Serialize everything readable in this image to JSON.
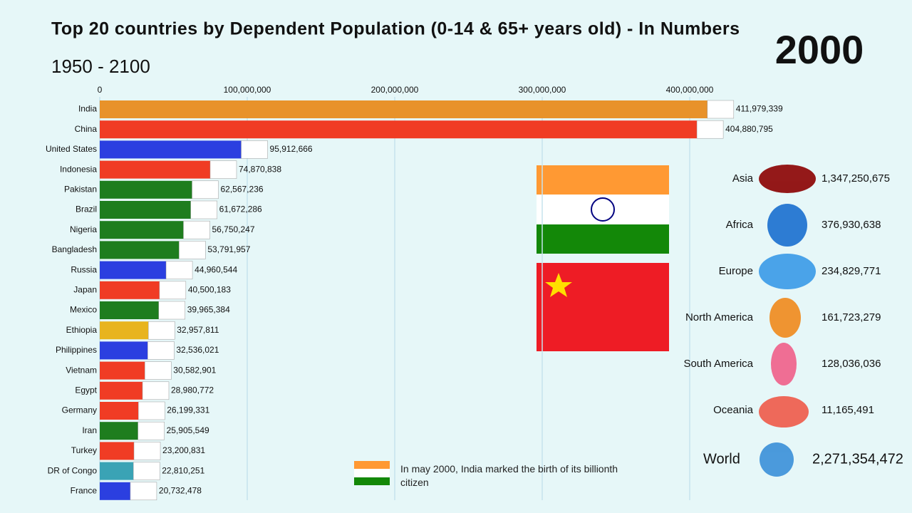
{
  "chart_data": {
    "type": "hbar",
    "title": "Top 20 countries by Dependent Population (0-14 & 65+ years old) - In Numbers",
    "subtitle": "1950 - 2100",
    "year": "2000",
    "categories": [
      "India",
      "China",
      "United States",
      "Indonesia",
      "Pakistan",
      "Brazil",
      "Nigeria",
      "Bangladesh",
      "Russia",
      "Japan",
      "Mexico",
      "Ethiopia",
      "Philippines",
      "Vietnam",
      "Egypt",
      "Germany",
      "Iran",
      "Turkey",
      "DR of Congo",
      "France"
    ],
    "values": [
      411979339,
      404880795,
      95912666,
      74870838,
      62567236,
      61672286,
      56750247,
      53791957,
      44960544,
      40500183,
      39965384,
      32957811,
      32536021,
      30582901,
      28980772,
      26199331,
      25905549,
      23200831,
      22810251,
      20732478
    ],
    "value_labels": [
      "411,979,339",
      "404,880,795",
      "95,912,666",
      "74,870,838",
      "62,567,236",
      "61,672,286",
      "56,750,247",
      "53,791,957",
      "44,960,544",
      "40,500,183",
      "39,965,384",
      "32,957,811",
      "32,536,021",
      "30,582,901",
      "28,980,772",
      "26,199,331",
      "25,905,549",
      "23,200,831",
      "22,810,251",
      "20,732,478"
    ],
    "colors": [
      "#e8922a",
      "#f03c24",
      "#2b3fe0",
      "#f03c24",
      "#1e7d1e",
      "#1e7d1e",
      "#1e7d1e",
      "#1e7d1e",
      "#2b3fe0",
      "#f03c24",
      "#1e7d1e",
      "#e8b41e",
      "#2b3fe0",
      "#f03c24",
      "#f03c24",
      "#f03c24",
      "#1e7d1e",
      "#f03c24",
      "#3aa3b5",
      "#2b3fe0"
    ],
    "xlim": [
      0,
      450000000
    ],
    "xticks": [
      0,
      {
        "value": 100000000,
        "label": "100,000,000"
      },
      {
        "value": 200000000,
        "label": "200,000,000"
      },
      {
        "value": 300000000,
        "label": "300,000,000"
      },
      {
        "value": 400000000,
        "label": "400,000,000"
      }
    ],
    "grid": true
  },
  "regions": [
    {
      "name": "Asia",
      "total": "1,347,250,675"
    },
    {
      "name": "Africa",
      "total": "376,930,638"
    },
    {
      "name": "Europe",
      "total": "234,829,771"
    },
    {
      "name": "North America",
      "total": "161,723,279"
    },
    {
      "name": "South America",
      "total": "128,036,036"
    },
    {
      "name": "Oceania",
      "total": "11,165,491"
    }
  ],
  "world": {
    "name": "World",
    "total": "2,271,354,472"
  },
  "annotation": "In may 2000, India marked the birth of its billionth citizen"
}
